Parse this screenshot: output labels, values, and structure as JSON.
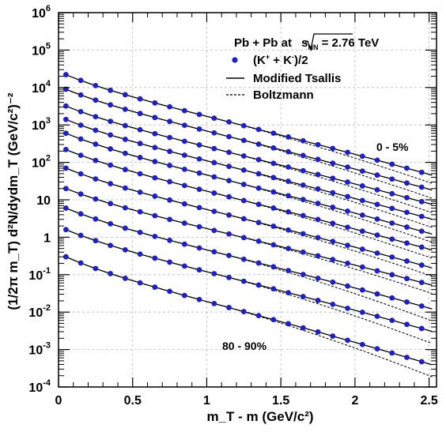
{
  "chart_data": {
    "type": "scatter",
    "xlabel": "m_T - m (GeV/c²)",
    "ylabel": "(1/2π m_T) d²N/dydm_T (GeV/c²)⁻²",
    "xlim": [
      0,
      2.55
    ],
    "ylim": [
      0.0001,
      1000000
    ],
    "yscale": "log",
    "grid": "dashed",
    "legend_position": "top-right",
    "x_ticks": [
      0,
      0.5,
      1,
      1.5,
      2,
      2.5
    ],
    "x_tick_labels": [
      "0",
      "0.5",
      "1",
      "1.5",
      "2",
      "2.5"
    ],
    "y_ticks": [
      0.0001,
      0.001,
      0.01,
      0.1,
      1,
      10,
      100,
      1000,
      10000,
      100000,
      1000000
    ],
    "y_tick_labels": [
      {
        "base": "10",
        "exp": "-4"
      },
      {
        "base": "10",
        "exp": "-3"
      },
      {
        "base": "10",
        "exp": "-2"
      },
      {
        "base": "10",
        "exp": "-1"
      },
      {
        "base": "1",
        "exp": ""
      },
      {
        "base": "10",
        "exp": ""
      },
      {
        "base": "10",
        "exp": "2"
      },
      {
        "base": "10",
        "exp": "3"
      },
      {
        "base": "10",
        "exp": "4"
      },
      {
        "base": "10",
        "exp": "5"
      },
      {
        "base": "10",
        "exp": "6"
      }
    ],
    "legend": {
      "title": "Pb + Pb at √s_NN = 2.76 TeV",
      "title_main": "Pb + Pb at ",
      "title_sqrt": "s",
      "title_sqrt_sub": "NN",
      "title_tail": " = 2.76 TeV",
      "points": "(K⁺ + K⁻)/2",
      "points_main": "(K",
      "points_sup1": "+",
      "points_mid": " + K",
      "points_sup2": "-",
      "points_tail": ")/2",
      "tsallis": "Modified Tsallis",
      "boltzmann": "Boltzmann"
    },
    "annotations": {
      "top": "0 - 5%",
      "bottom": "80 - 90%"
    },
    "series_x": [
      0.05,
      0.15,
      0.25,
      0.35,
      0.45,
      0.55,
      0.65,
      0.75,
      0.85,
      0.95,
      1.05,
      1.15,
      1.25,
      1.35,
      1.45,
      1.55,
      1.65,
      1.75,
      1.85,
      1.95,
      2.05,
      2.15,
      2.25,
      2.35,
      2.45
    ],
    "series": [
      {
        "y0": 22000,
        "y_end": 30
      },
      {
        "y0": 9000,
        "y_end": 12
      },
      {
        "y0": 3200,
        "y_end": 5
      },
      {
        "y0": 1400,
        "y_end": 2
      },
      {
        "y0": 600,
        "y_end": 0.8
      },
      {
        "y0": 220,
        "y_end": 0.3
      },
      {
        "y0": 70,
        "y_end": 0.1
      },
      {
        "y0": 20,
        "y_end": 0.035
      },
      {
        "y0": 6,
        "y_end": 0.008
      },
      {
        "y0": 1.6,
        "y_end": 0.002
      },
      {
        "y0": 0.3,
        "y_end": 0.00025
      }
    ],
    "colors": {
      "points": "#2020c0",
      "tsallis": "#000000",
      "boltzmann": "#000000",
      "grid": "#bbbbbb"
    }
  }
}
